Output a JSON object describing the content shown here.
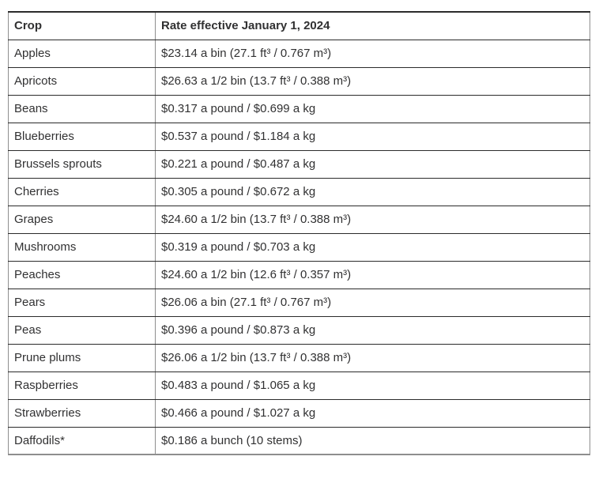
{
  "colors": {
    "text": "#313132",
    "border-dark": "#2b2b2b",
    "border-gray": "#8e8e8e",
    "bg": "#ffffff"
  },
  "table": {
    "headers": {
      "crop": "Crop",
      "rate": "Rate effective January 1, 2024"
    },
    "rows": [
      {
        "crop": "Apples",
        "rate": "$23.14 a bin (27.1 ft³ / 0.767 m³)"
      },
      {
        "crop": "Apricots",
        "rate": "$26.63 a 1/2 bin (13.7 ft³ / 0.388 m³)"
      },
      {
        "crop": "Beans",
        "rate": "$0.317 a pound / $0.699 a kg"
      },
      {
        "crop": "Blueberries",
        "rate": "$0.537 a pound / $1.184 a kg"
      },
      {
        "crop": "Brussels sprouts",
        "rate": "$0.221 a pound / $0.487 a kg"
      },
      {
        "crop": "Cherries",
        "rate": "$0.305 a pound / $0.672 a kg"
      },
      {
        "crop": "Grapes",
        "rate": "$24.60 a 1/2 bin (13.7 ft³ / 0.388 m³)"
      },
      {
        "crop": "Mushrooms",
        "rate": "$0.319 a pound / $0.703 a kg"
      },
      {
        "crop": "Peaches",
        "rate": "$24.60 a 1/2 bin (12.6 ft³ / 0.357 m³)"
      },
      {
        "crop": "Pears",
        "rate": "$26.06 a bin (27.1 ft³ / 0.767 m³)"
      },
      {
        "crop": "Peas",
        "rate": "$0.396 a pound / $0.873 a kg"
      },
      {
        "crop": "Prune plums",
        "rate": "$26.06 a 1/2 bin (13.7 ft³ / 0.388 m³)"
      },
      {
        "crop": "Raspberries",
        "rate": "$0.483 a pound / $1.065 a kg"
      },
      {
        "crop": "Strawberries",
        "rate": "$0.466 a pound / $1.027 a kg"
      },
      {
        "crop": "Daffodils*",
        "rate": "$0.186 a bunch (10 stems)"
      }
    ]
  }
}
